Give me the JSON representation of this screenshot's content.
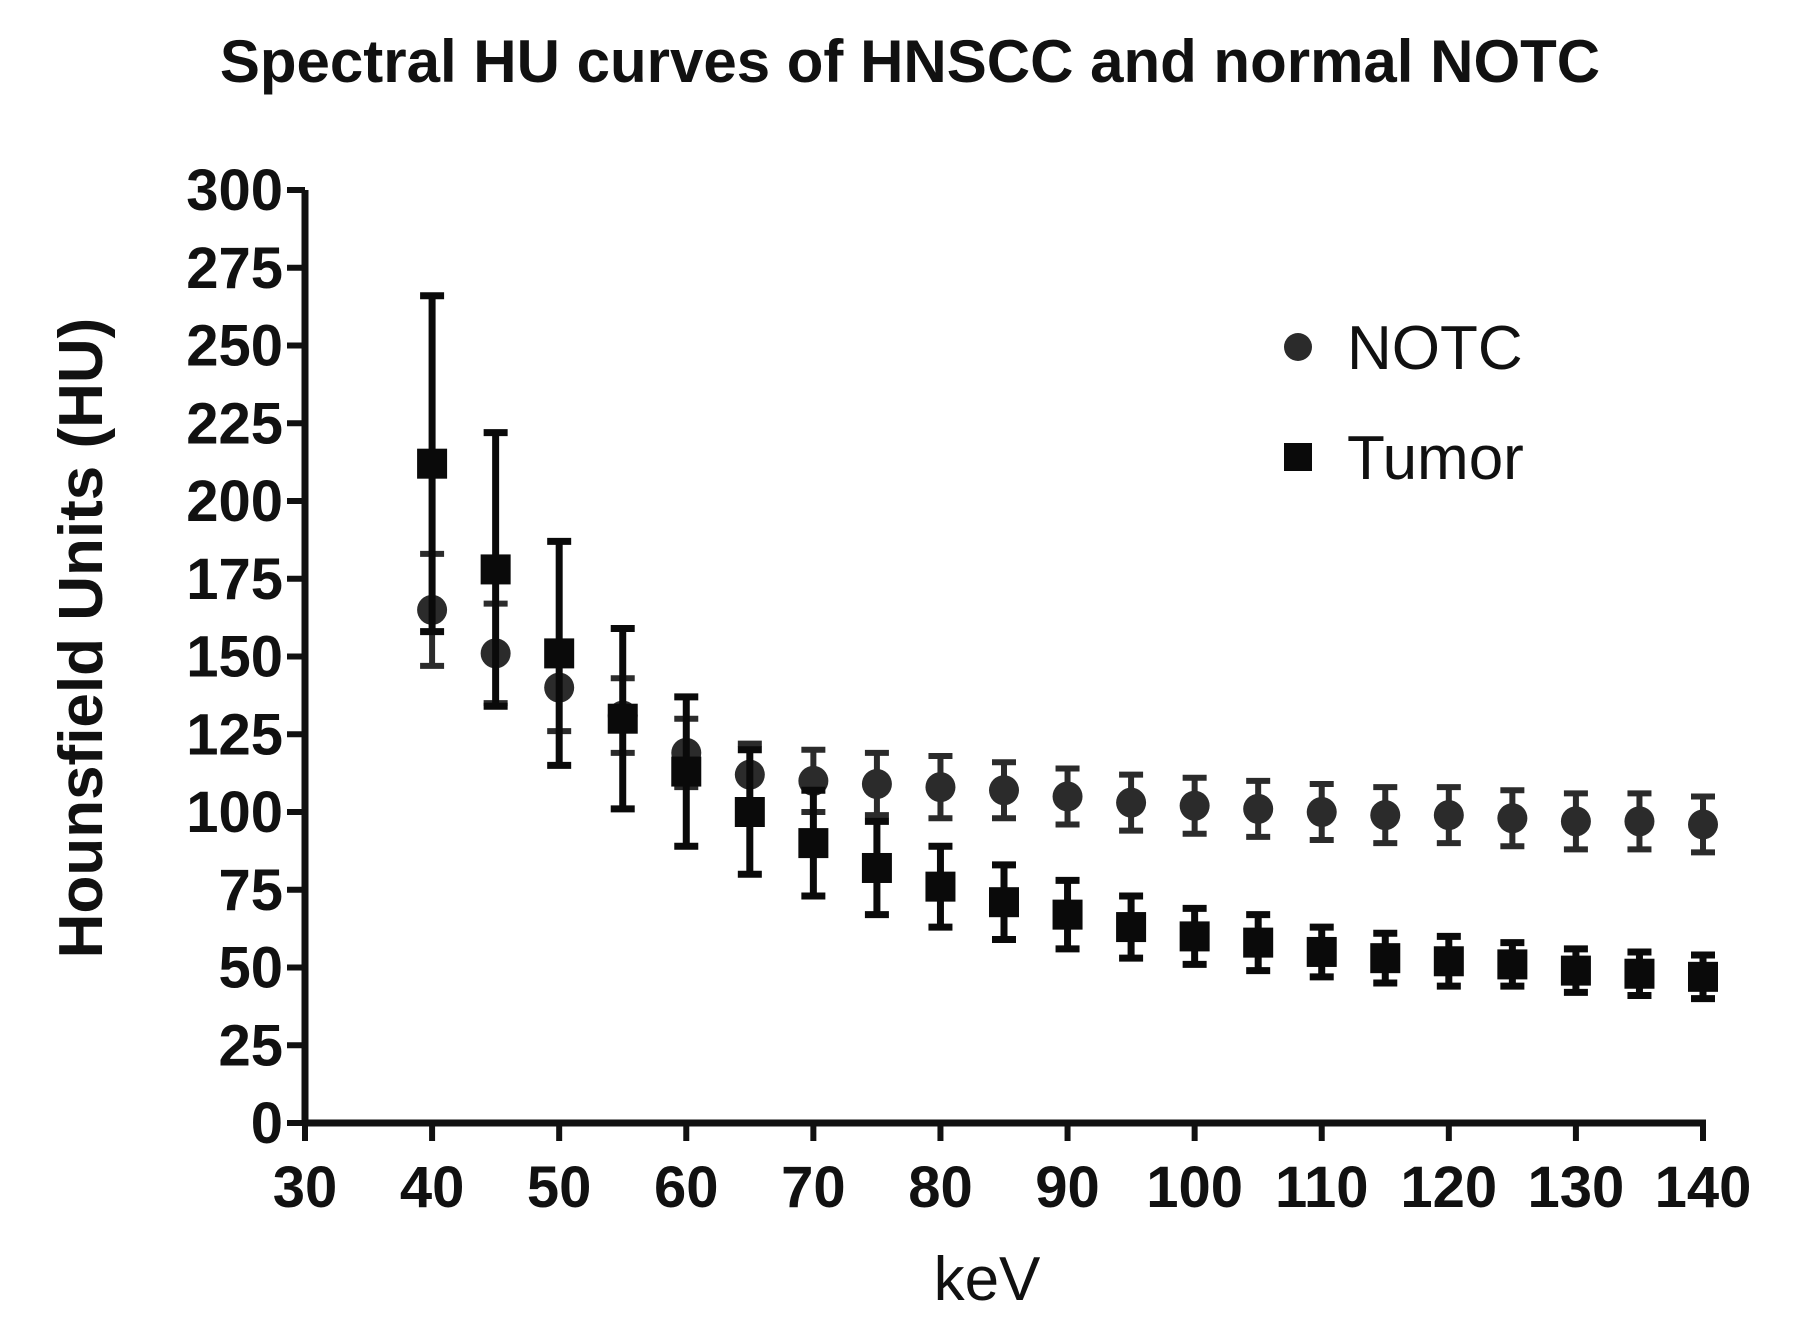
{
  "chart_data": {
    "type": "scatter",
    "title": "Spectral HU curves of HNSCC and normal NOTC",
    "xlabel": "keV",
    "ylabel": "Hounsfield Units (HU)",
    "xlim": [
      30,
      140
    ],
    "ylim": [
      0,
      300
    ],
    "x_ticks": [
      "30",
      "40",
      "50",
      "60",
      "70",
      "80",
      "90",
      "100",
      "110",
      "120",
      "130",
      "140"
    ],
    "y_ticks": [
      "0",
      "25",
      "50",
      "75",
      "100",
      "125",
      "150",
      "175",
      "200",
      "225",
      "250",
      "275",
      "300"
    ],
    "grid": false,
    "legend_position": "top-right",
    "error_bars": true,
    "series": [
      {
        "name": "NOTC",
        "marker": "circle",
        "color": "#2b2b2b",
        "points": [
          {
            "x": 40,
            "y": 165,
            "err": 18
          },
          {
            "x": 45,
            "y": 151,
            "err": 16
          },
          {
            "x": 50,
            "y": 140,
            "err": 14
          },
          {
            "x": 55,
            "y": 131,
            "err": 12
          },
          {
            "x": 60,
            "y": 119,
            "err": 11
          },
          {
            "x": 65,
            "y": 112,
            "err": 10
          },
          {
            "x": 70,
            "y": 110,
            "err": 10
          },
          {
            "x": 75,
            "y": 109,
            "err": 10
          },
          {
            "x": 80,
            "y": 108,
            "err": 10
          },
          {
            "x": 85,
            "y": 107,
            "err": 9
          },
          {
            "x": 90,
            "y": 105,
            "err": 9
          },
          {
            "x": 95,
            "y": 103,
            "err": 9
          },
          {
            "x": 100,
            "y": 102,
            "err": 9
          },
          {
            "x": 105,
            "y": 101,
            "err": 9
          },
          {
            "x": 110,
            "y": 100,
            "err": 9
          },
          {
            "x": 115,
            "y": 99,
            "err": 9
          },
          {
            "x": 120,
            "y": 99,
            "err": 9
          },
          {
            "x": 125,
            "y": 98,
            "err": 9
          },
          {
            "x": 130,
            "y": 97,
            "err": 9
          },
          {
            "x": 135,
            "y": 97,
            "err": 9
          },
          {
            "x": 140,
            "y": 96,
            "err": 9
          }
        ]
      },
      {
        "name": "Tumor",
        "marker": "square",
        "color": "#0a0a0a",
        "points": [
          {
            "x": 40,
            "y": 212,
            "err": 54
          },
          {
            "x": 45,
            "y": 178,
            "err": 44
          },
          {
            "x": 50,
            "y": 151,
            "err": 36
          },
          {
            "x": 55,
            "y": 130,
            "err": 29
          },
          {
            "x": 60,
            "y": 113,
            "err": 24
          },
          {
            "x": 65,
            "y": 100,
            "err": 20
          },
          {
            "x": 70,
            "y": 90,
            "err": 17
          },
          {
            "x": 75,
            "y": 82,
            "err": 15
          },
          {
            "x": 80,
            "y": 76,
            "err": 13
          },
          {
            "x": 85,
            "y": 71,
            "err": 12
          },
          {
            "x": 90,
            "y": 67,
            "err": 11
          },
          {
            "x": 95,
            "y": 63,
            "err": 10
          },
          {
            "x": 100,
            "y": 60,
            "err": 9
          },
          {
            "x": 105,
            "y": 58,
            "err": 9
          },
          {
            "x": 110,
            "y": 55,
            "err": 8
          },
          {
            "x": 115,
            "y": 53,
            "err": 8
          },
          {
            "x": 120,
            "y": 52,
            "err": 8
          },
          {
            "x": 125,
            "y": 51,
            "err": 7
          },
          {
            "x": 130,
            "y": 49,
            "err": 7
          },
          {
            "x": 135,
            "y": 48,
            "err": 7
          },
          {
            "x": 140,
            "y": 47,
            "err": 7
          }
        ]
      }
    ]
  }
}
